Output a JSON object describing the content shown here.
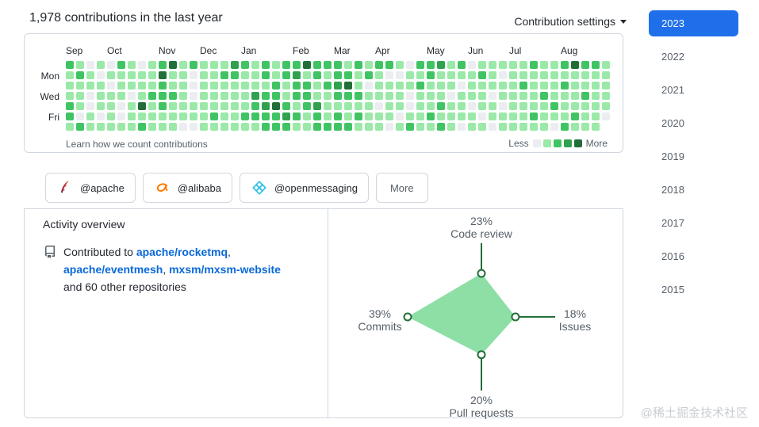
{
  "header": {
    "title": "1,978 contributions in the last year",
    "settings_label": "Contribution settings"
  },
  "year_nav": {
    "selected": "2023",
    "years": [
      "2023",
      "2022",
      "2021",
      "2020",
      "2019",
      "2018",
      "2017",
      "2016",
      "2015"
    ],
    "active_color": "#1f6feb"
  },
  "heatmap": {
    "months": [
      {
        "label": "Sep",
        "col": 0
      },
      {
        "label": "Oct",
        "col": 4
      },
      {
        "label": "Nov",
        "col": 9
      },
      {
        "label": "Dec",
        "col": 13
      },
      {
        "label": "Jan",
        "col": 17
      },
      {
        "label": "Feb",
        "col": 22
      },
      {
        "label": "Mar",
        "col": 26
      },
      {
        "label": "Apr",
        "col": 30
      },
      {
        "label": "May",
        "col": 35
      },
      {
        "label": "Jun",
        "col": 39
      },
      {
        "label": "Jul",
        "col": 43
      },
      {
        "label": "Aug",
        "col": 48
      }
    ],
    "day_labels": [
      {
        "label": "Mon",
        "row": 1
      },
      {
        "label": "Wed",
        "row": 3
      },
      {
        "label": "Fri",
        "row": 5
      }
    ],
    "palette": [
      "#ebedf0",
      "#9be9a8",
      "#40c463",
      "#30a14e",
      "#216e39"
    ],
    "weeks": [
      "2111221",
      "1211102",
      "0110011",
      "1011101",
      "0101111",
      "2111001",
      "1110111",
      "0111412",
      "1112111",
      "2422211",
      "4112111",
      "1111110",
      "2000110",
      "1111111",
      "1111121",
      "1211111",
      "3211111",
      "2111121",
      "1113221",
      "2212322",
      "1122422",
      "2211232",
      "2322121",
      "4122211",
      "2211322",
      "2121112",
      "2232122",
      "1242112",
      "2112121",
      "1201111",
      "2111011",
      "2011110",
      "1011101",
      "0110012",
      "2121111",
      "2211121",
      "3111212",
      "1110111",
      "2101110",
      "0111011",
      "1211101",
      "1110110",
      "1011011",
      "1111111",
      "1121111",
      "2111121",
      "1112111",
      "1111210",
      "2121112",
      "4111121",
      "2112111",
      "2111111",
      "111110"
    ],
    "footer_link": "Learn how we count contributions",
    "legend": {
      "less": "Less",
      "more": "More"
    }
  },
  "orgs": [
    {
      "label": "@apache",
      "icon": "apache-feather-icon"
    },
    {
      "label": "@alibaba",
      "icon": "alibaba-icon"
    },
    {
      "label": "@openmessaging",
      "icon": "openmessaging-icon"
    }
  ],
  "more_label": "More",
  "activity": {
    "heading": "Activity overview",
    "contributed_prefix": "Contributed to",
    "repos": [
      "apache/rocketmq",
      "apache/eventmesh",
      "mxsm/mxsm-website"
    ],
    "suffix": "and 60 other repositories"
  },
  "chart_data": {
    "type": "radar",
    "axes": [
      "Code review",
      "Issues",
      "Pull requests",
      "Commits"
    ],
    "values": [
      23,
      18,
      20,
      39
    ],
    "labels": [
      "23%",
      "18%",
      "20%",
      "39%"
    ],
    "max": 39,
    "axis_color": "#216e39",
    "fill_color": "#8edfa6",
    "marker_fill": "#ffffff"
  },
  "watermark": "@稀土掘金技术社区"
}
